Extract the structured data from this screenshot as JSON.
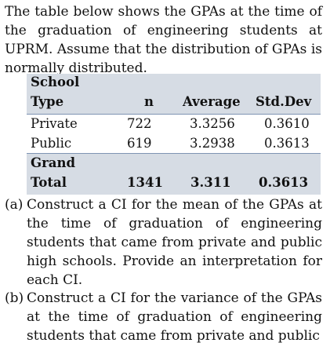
{
  "intro": "The table below shows the GPAs at the time of the graduation of engineering students at UPRM. Assume that the distribution of GPAs is normally distributed.",
  "table": {
    "header": {
      "col1_line1": "School",
      "col1_line2": "Type",
      "n": "n",
      "average": "Average",
      "std": "Std.Dev"
    },
    "rows": [
      {
        "type": "Private",
        "n": "722",
        "average": "3.3256",
        "std": "0.3610"
      },
      {
        "type": "Public",
        "n": "619",
        "average": "3.2938",
        "std": "0.3613"
      }
    ],
    "total": {
      "label_line1": "Grand",
      "label_line2": "Total",
      "n": "1341",
      "average": "3.311",
      "std": "0.3613"
    },
    "band_color": "#d6dce4",
    "rule_color": "#7f94b3"
  },
  "questions": [
    {
      "label": "(a)",
      "text": "Construct a CI for the mean of the GPAs at the time of graduation of engineering students that came from private and public high schools. Provide an interpretation for each CI."
    },
    {
      "label": "(b)",
      "text": "Construct a CI for the variance of the GPAs at the time of graduation of engineering students that came from private and public"
    }
  ]
}
